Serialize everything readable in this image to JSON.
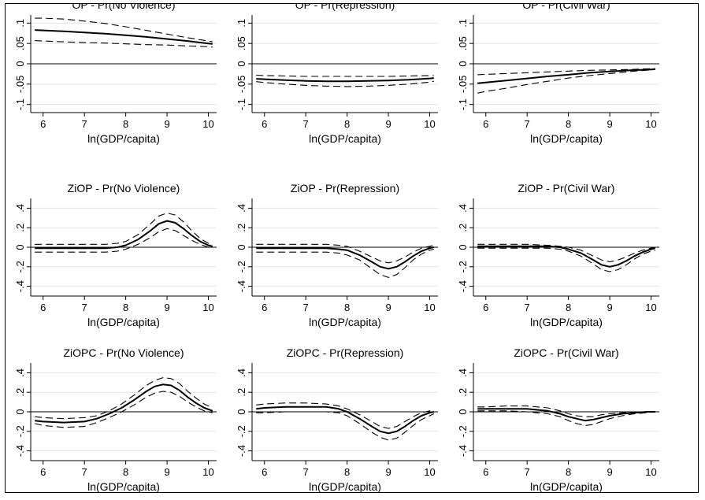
{
  "chart_data": [
    {
      "type": "line",
      "title": "OP - Pr(No Violence)",
      "xlabel": "ln(GDP/capita)",
      "ylabel": "",
      "xlim": [
        5.7,
        10.2
      ],
      "ylim": [
        -0.12,
        0.12
      ],
      "xticks": [
        6,
        7,
        8,
        9,
        10
      ],
      "yticks": [
        -0.1,
        -0.05,
        0,
        0.05,
        0.1
      ],
      "ytick_labels": [
        "-.1",
        "-.05",
        "0",
        ".05",
        ".1"
      ],
      "grid": true,
      "x": [
        5.8,
        6.0,
        6.5,
        7.0,
        7.5,
        8.0,
        8.5,
        9.0,
        9.5,
        10.0,
        10.1
      ],
      "series": [
        {
          "role": "estimate",
          "values": [
            0.083,
            0.082,
            0.08,
            0.077,
            0.074,
            0.07,
            0.066,
            0.061,
            0.056,
            0.05,
            0.049
          ]
        },
        {
          "role": "upper",
          "values": [
            0.112,
            0.112,
            0.11,
            0.105,
            0.099,
            0.091,
            0.082,
            0.073,
            0.064,
            0.056,
            0.054
          ]
        },
        {
          "role": "lower",
          "values": [
            0.057,
            0.056,
            0.054,
            0.052,
            0.051,
            0.049,
            0.047,
            0.046,
            0.044,
            0.042,
            0.041
          ]
        }
      ]
    },
    {
      "type": "line",
      "title": "OP - Pr(Repression)",
      "xlabel": "ln(GDP/capita)",
      "ylabel": "",
      "xlim": [
        5.7,
        10.2
      ],
      "ylim": [
        -0.12,
        0.12
      ],
      "xticks": [
        6,
        7,
        8,
        9,
        10
      ],
      "yticks": [
        -0.1,
        -0.05,
        0,
        0.05,
        0.1
      ],
      "ytick_labels": [
        "-.1",
        "-.05",
        "0",
        ".05",
        ".1"
      ],
      "grid": true,
      "x": [
        5.8,
        6.0,
        6.5,
        7.0,
        7.5,
        8.0,
        8.5,
        9.0,
        9.5,
        10.0,
        10.1
      ],
      "series": [
        {
          "role": "estimate",
          "values": [
            -0.037,
            -0.038,
            -0.04,
            -0.042,
            -0.043,
            -0.043,
            -0.042,
            -0.041,
            -0.039,
            -0.036,
            -0.035
          ]
        },
        {
          "role": "upper",
          "values": [
            -0.028,
            -0.029,
            -0.03,
            -0.031,
            -0.031,
            -0.031,
            -0.031,
            -0.031,
            -0.03,
            -0.029,
            -0.029
          ]
        },
        {
          "role": "lower",
          "values": [
            -0.044,
            -0.046,
            -0.05,
            -0.053,
            -0.055,
            -0.056,
            -0.055,
            -0.053,
            -0.05,
            -0.045,
            -0.043
          ]
        }
      ]
    },
    {
      "type": "line",
      "title": "OP - Pr(Civil War)",
      "xlabel": "ln(GDP/capita)",
      "ylabel": "",
      "xlim": [
        5.7,
        10.2
      ],
      "ylim": [
        -0.12,
        0.12
      ],
      "xticks": [
        6,
        7,
        8,
        9,
        10
      ],
      "yticks": [
        -0.1,
        -0.05,
        0,
        0.05,
        0.1
      ],
      "ytick_labels": [
        "-.1",
        "-.05",
        "0",
        ".05",
        ".1"
      ],
      "grid": true,
      "x": [
        5.8,
        6.0,
        6.5,
        7.0,
        7.5,
        8.0,
        8.5,
        9.0,
        9.5,
        10.0,
        10.1
      ],
      "series": [
        {
          "role": "estimate",
          "values": [
            -0.048,
            -0.046,
            -0.041,
            -0.036,
            -0.031,
            -0.027,
            -0.022,
            -0.019,
            -0.016,
            -0.014,
            -0.013
          ]
        },
        {
          "role": "upper",
          "values": [
            -0.027,
            -0.026,
            -0.024,
            -0.022,
            -0.02,
            -0.018,
            -0.016,
            -0.015,
            -0.014,
            -0.012,
            -0.012
          ]
        },
        {
          "role": "lower",
          "values": [
            -0.072,
            -0.068,
            -0.06,
            -0.051,
            -0.043,
            -0.035,
            -0.029,
            -0.024,
            -0.019,
            -0.015,
            -0.014
          ]
        }
      ]
    },
    {
      "type": "line",
      "title": "ZiOP - Pr(No Violence)",
      "xlabel": "ln(GDP/capita)",
      "ylabel": "",
      "xlim": [
        5.7,
        10.2
      ],
      "ylim": [
        -0.5,
        0.5
      ],
      "xticks": [
        6,
        7,
        8,
        9,
        10
      ],
      "yticks": [
        -0.4,
        -0.2,
        0,
        0.2,
        0.4
      ],
      "ytick_labels": [
        "-.4",
        "-.2",
        "0",
        ".2",
        ".4"
      ],
      "grid": true,
      "x": [
        5.8,
        6.0,
        6.5,
        7.0,
        7.5,
        7.8,
        8.0,
        8.3,
        8.6,
        8.8,
        9.0,
        9.2,
        9.4,
        9.6,
        9.8,
        10.0,
        10.1
      ],
      "series": [
        {
          "role": "estimate",
          "values": [
            -0.01,
            -0.01,
            -0.01,
            -0.01,
            -0.01,
            0.0,
            0.02,
            0.08,
            0.17,
            0.24,
            0.27,
            0.25,
            0.19,
            0.12,
            0.06,
            0.02,
            0.01
          ]
        },
        {
          "role": "upper",
          "values": [
            0.03,
            0.03,
            0.03,
            0.03,
            0.03,
            0.04,
            0.06,
            0.13,
            0.24,
            0.32,
            0.35,
            0.33,
            0.26,
            0.17,
            0.09,
            0.04,
            0.03
          ]
        },
        {
          "role": "lower",
          "values": [
            -0.05,
            -0.05,
            -0.05,
            -0.05,
            -0.05,
            -0.04,
            -0.02,
            0.03,
            0.1,
            0.16,
            0.19,
            0.17,
            0.12,
            0.07,
            0.03,
            0.0,
            -0.01
          ]
        }
      ]
    },
    {
      "type": "line",
      "title": "ZiOP - Pr(Repression)",
      "xlabel": "ln(GDP/capita)",
      "ylabel": "",
      "xlim": [
        5.7,
        10.2
      ],
      "ylim": [
        -0.5,
        0.5
      ],
      "xticks": [
        6,
        7,
        8,
        9,
        10
      ],
      "yticks": [
        -0.4,
        -0.2,
        0,
        0.2,
        0.4
      ],
      "ytick_labels": [
        "-.4",
        "-.2",
        "0",
        ".2",
        ".4"
      ],
      "grid": true,
      "x": [
        5.8,
        6.0,
        6.5,
        7.0,
        7.5,
        7.8,
        8.0,
        8.3,
        8.6,
        8.8,
        9.0,
        9.2,
        9.4,
        9.6,
        9.8,
        10.0,
        10.1
      ],
      "series": [
        {
          "role": "estimate",
          "values": [
            -0.01,
            -0.01,
            -0.01,
            -0.01,
            -0.01,
            -0.02,
            -0.03,
            -0.08,
            -0.15,
            -0.2,
            -0.22,
            -0.2,
            -0.15,
            -0.09,
            -0.04,
            -0.01,
            0.0
          ]
        },
        {
          "role": "upper",
          "values": [
            0.03,
            0.03,
            0.03,
            0.03,
            0.03,
            0.02,
            0.01,
            -0.04,
            -0.1,
            -0.14,
            -0.16,
            -0.14,
            -0.1,
            -0.05,
            -0.01,
            0.01,
            0.02
          ]
        },
        {
          "role": "lower",
          "values": [
            -0.05,
            -0.05,
            -0.05,
            -0.05,
            -0.05,
            -0.06,
            -0.08,
            -0.13,
            -0.22,
            -0.28,
            -0.31,
            -0.28,
            -0.21,
            -0.13,
            -0.07,
            -0.03,
            -0.02
          ]
        }
      ]
    },
    {
      "type": "line",
      "title": "ZiOP - Pr(Civil War)",
      "xlabel": "ln(GDP/capita)",
      "ylabel": "",
      "xlim": [
        5.7,
        10.2
      ],
      "ylim": [
        -0.5,
        0.5
      ],
      "xticks": [
        6,
        7,
        8,
        9,
        10
      ],
      "yticks": [
        -0.4,
        -0.2,
        0,
        0.2,
        0.4
      ],
      "ytick_labels": [
        "-.4",
        "-.2",
        "0",
        ".2",
        ".4"
      ],
      "grid": true,
      "x": [
        5.8,
        6.0,
        6.5,
        7.0,
        7.5,
        7.8,
        8.0,
        8.3,
        8.6,
        8.8,
        9.0,
        9.2,
        9.4,
        9.6,
        9.8,
        10.0,
        10.1
      ],
      "series": [
        {
          "role": "estimate",
          "values": [
            0.01,
            0.01,
            0.01,
            0.01,
            0.01,
            0.0,
            -0.02,
            -0.06,
            -0.13,
            -0.18,
            -0.2,
            -0.18,
            -0.14,
            -0.09,
            -0.05,
            -0.02,
            -0.01
          ]
        },
        {
          "role": "upper",
          "values": [
            0.03,
            0.03,
            0.03,
            0.03,
            0.02,
            0.01,
            0.0,
            -0.03,
            -0.09,
            -0.13,
            -0.15,
            -0.13,
            -0.1,
            -0.06,
            -0.03,
            -0.01,
            0.0
          ]
        },
        {
          "role": "lower",
          "values": [
            -0.01,
            -0.01,
            -0.01,
            -0.01,
            -0.01,
            -0.02,
            -0.04,
            -0.09,
            -0.17,
            -0.23,
            -0.25,
            -0.23,
            -0.18,
            -0.12,
            -0.07,
            -0.04,
            -0.03
          ]
        }
      ]
    },
    {
      "type": "line",
      "title": "ZiOPC - Pr(No Violence)",
      "xlabel": "ln(GDP/capita)",
      "ylabel": "",
      "xlim": [
        5.7,
        10.2
      ],
      "ylim": [
        -0.5,
        0.5
      ],
      "xticks": [
        6,
        7,
        8,
        9,
        10
      ],
      "yticks": [
        -0.4,
        -0.2,
        0,
        0.2,
        0.4
      ],
      "ytick_labels": [
        "-.4",
        "-.2",
        "0",
        ".2",
        ".4"
      ],
      "grid": true,
      "x": [
        5.8,
        6.0,
        6.5,
        7.0,
        7.3,
        7.6,
        7.9,
        8.2,
        8.5,
        8.7,
        8.9,
        9.1,
        9.3,
        9.5,
        9.7,
        9.9,
        10.1
      ],
      "series": [
        {
          "role": "estimate",
          "values": [
            -0.09,
            -0.1,
            -0.11,
            -0.1,
            -0.07,
            -0.02,
            0.04,
            0.12,
            0.21,
            0.26,
            0.28,
            0.27,
            0.22,
            0.15,
            0.09,
            0.04,
            0.01
          ]
        },
        {
          "role": "upper",
          "values": [
            -0.05,
            -0.06,
            -0.07,
            -0.06,
            -0.04,
            0.01,
            0.08,
            0.17,
            0.27,
            0.32,
            0.35,
            0.34,
            0.29,
            0.21,
            0.14,
            0.08,
            0.04
          ]
        },
        {
          "role": "lower",
          "values": [
            -0.12,
            -0.14,
            -0.16,
            -0.15,
            -0.11,
            -0.06,
            0.0,
            0.07,
            0.15,
            0.19,
            0.21,
            0.2,
            0.16,
            0.1,
            0.05,
            0.01,
            -0.01
          ]
        }
      ]
    },
    {
      "type": "line",
      "title": "ZiOPC - Pr(Repression)",
      "xlabel": "ln(GDP/capita)",
      "ylabel": "",
      "xlim": [
        5.7,
        10.2
      ],
      "ylim": [
        -0.5,
        0.5
      ],
      "xticks": [
        6,
        7,
        8,
        9,
        10
      ],
      "yticks": [
        -0.4,
        -0.2,
        0,
        0.2,
        0.4
      ],
      "ytick_labels": [
        "-.4",
        "-.2",
        "0",
        ".2",
        ".4"
      ],
      "grid": true,
      "x": [
        5.8,
        6.0,
        6.5,
        7.0,
        7.5,
        7.8,
        8.0,
        8.3,
        8.6,
        8.8,
        9.0,
        9.2,
        9.4,
        9.6,
        9.8,
        10.0,
        10.1
      ],
      "series": [
        {
          "role": "estimate",
          "values": [
            0.03,
            0.04,
            0.05,
            0.05,
            0.05,
            0.03,
            0.0,
            -0.07,
            -0.15,
            -0.2,
            -0.22,
            -0.2,
            -0.15,
            -0.09,
            -0.04,
            -0.01,
            0.0
          ]
        },
        {
          "role": "upper",
          "values": [
            0.07,
            0.08,
            0.09,
            0.09,
            0.08,
            0.06,
            0.03,
            -0.03,
            -0.1,
            -0.15,
            -0.17,
            -0.15,
            -0.1,
            -0.05,
            -0.01,
            0.01,
            0.02
          ]
        },
        {
          "role": "lower",
          "values": [
            -0.01,
            -0.01,
            0.0,
            0.0,
            0.0,
            -0.01,
            -0.04,
            -0.12,
            -0.21,
            -0.26,
            -0.29,
            -0.27,
            -0.21,
            -0.14,
            -0.08,
            -0.04,
            -0.02
          ]
        }
      ]
    },
    {
      "type": "line",
      "title": "ZiOPC - Pr(Civil War)",
      "xlabel": "ln(GDP/capita)",
      "ylabel": "",
      "xlim": [
        5.7,
        10.2
      ],
      "ylim": [
        -0.5,
        0.5
      ],
      "xticks": [
        6,
        7,
        8,
        9,
        10
      ],
      "yticks": [
        -0.4,
        -0.2,
        0,
        0.2,
        0.4
      ],
      "ytick_labels": [
        "-.4",
        "-.2",
        "0",
        ".2",
        ".4"
      ],
      "grid": true,
      "x": [
        5.8,
        6.0,
        6.5,
        7.0,
        7.5,
        7.8,
        8.0,
        8.2,
        8.4,
        8.6,
        8.8,
        9.0,
        9.3,
        9.6,
        9.9,
        10.1
      ],
      "series": [
        {
          "role": "estimate",
          "values": [
            0.03,
            0.03,
            0.03,
            0.03,
            0.01,
            -0.02,
            -0.05,
            -0.07,
            -0.09,
            -0.08,
            -0.06,
            -0.04,
            -0.02,
            -0.01,
            0.0,
            0.0
          ]
        },
        {
          "role": "upper",
          "values": [
            0.05,
            0.05,
            0.06,
            0.06,
            0.04,
            0.01,
            -0.02,
            -0.04,
            -0.05,
            -0.05,
            -0.03,
            -0.02,
            -0.01,
            0.0,
            0.0,
            0.0
          ]
        },
        {
          "role": "lower",
          "values": [
            0.01,
            0.01,
            0.01,
            0.0,
            -0.02,
            -0.05,
            -0.09,
            -0.12,
            -0.14,
            -0.13,
            -0.1,
            -0.07,
            -0.04,
            -0.02,
            -0.01,
            0.0
          ]
        }
      ]
    }
  ]
}
